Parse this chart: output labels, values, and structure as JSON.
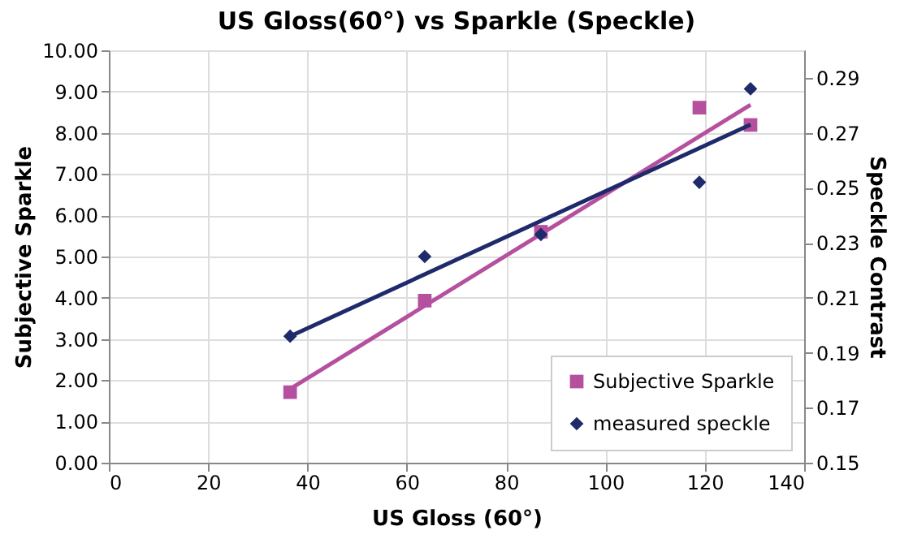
{
  "chart_data": {
    "type": "scatter",
    "title": "US Gloss(60°) vs Sparkle (Speckle)",
    "xlabel": "US Gloss (60°)",
    "ylabel": "Subjective Sparkle",
    "y2label": "Speckle Contrast",
    "xlim": [
      0,
      140
    ],
    "xticks": [
      0,
      20,
      40,
      60,
      80,
      100,
      120,
      140
    ],
    "ylim": [
      0,
      10
    ],
    "yticks": [
      {
        "value": 0,
        "label": "0.00"
      },
      {
        "value": 1,
        "label": "1.00"
      },
      {
        "value": 2,
        "label": "2.00"
      },
      {
        "value": 3,
        "label": "3.00"
      },
      {
        "value": 4,
        "label": "4.00"
      },
      {
        "value": 5,
        "label": "5.00"
      },
      {
        "value": 6,
        "label": "6.00"
      },
      {
        "value": 7,
        "label": "7.00"
      },
      {
        "value": 8,
        "label": "8.00"
      },
      {
        "value": 9,
        "label": "9.00"
      },
      {
        "value": 10,
        "label": "10.00"
      }
    ],
    "y2lim": [
      0.15,
      0.3
    ],
    "y2ticks": [
      0.15,
      0.17,
      0.19,
      0.21,
      0.23,
      0.25,
      0.27,
      0.29
    ],
    "grid": true,
    "legend": "bottom right",
    "series": [
      {
        "name": "Subjective Sparkle",
        "marker": "square",
        "color": "#b5509f",
        "x": [
          36.5,
          63.6,
          87,
          118.9,
          129.2
        ],
        "values": [
          1.71,
          3.93,
          5.6,
          8.61,
          8.19
        ]
      },
      {
        "name": "measured speckle",
        "marker": "diamond",
        "axis": "y2",
        "color": "#1f2a6b",
        "x": [
          36.5,
          63.6,
          87,
          118.9,
          129.2
        ],
        "values": [
          0.196,
          0.225,
          0.233,
          0.252,
          0.286
        ]
      },
      {
        "type": "line",
        "marker": "none",
        "color": "#b5509f",
        "x": [
          36.5,
          129.2
        ],
        "values": [
          1.79,
          8.68
        ]
      },
      {
        "type": "line",
        "marker": "none",
        "axis": "y2",
        "color": "#1f2a6b",
        "x": [
          36.5,
          129.2
        ],
        "values": [
          0.196,
          0.273
        ]
      }
    ]
  }
}
